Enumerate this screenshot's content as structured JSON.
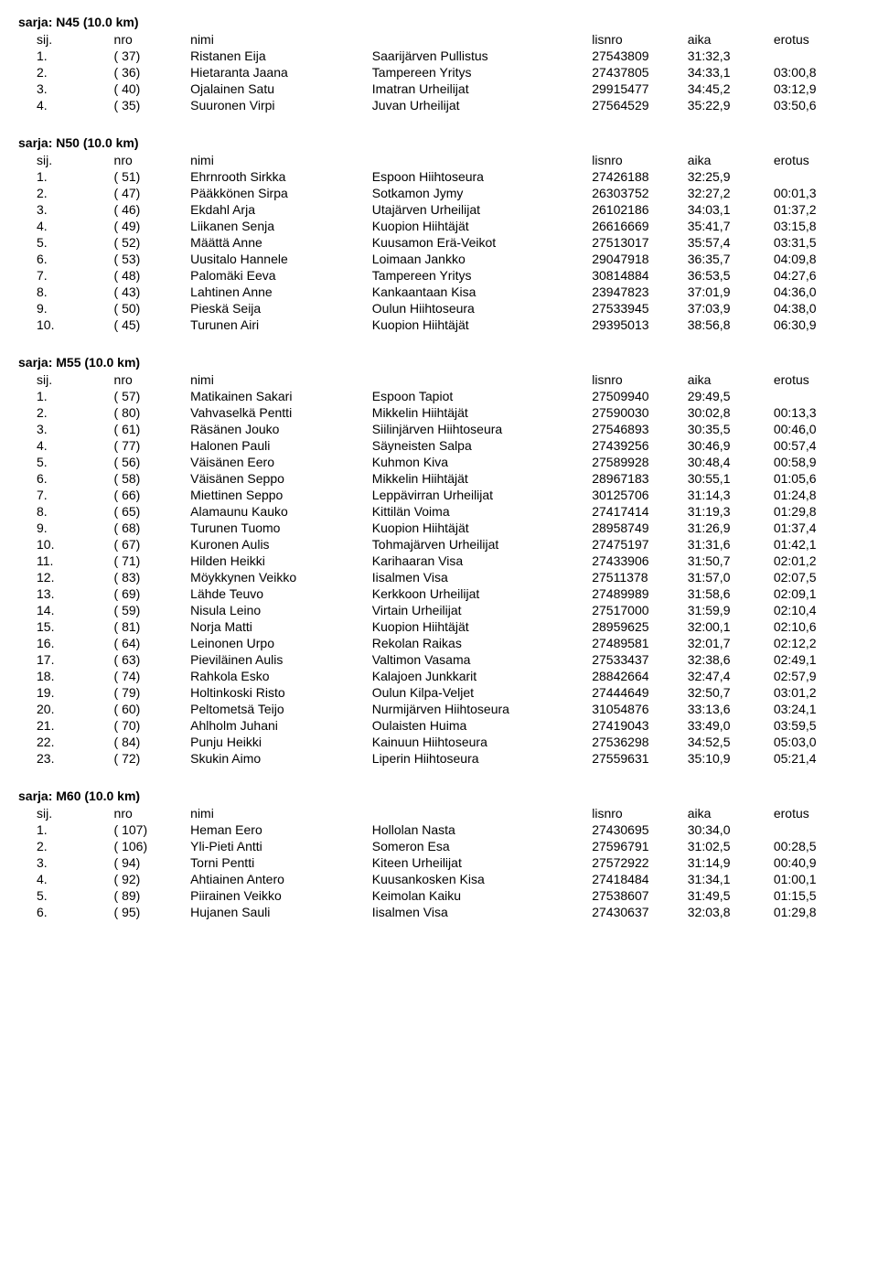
{
  "columns": {
    "sij": "sij.",
    "nro": "nro",
    "nimi": "nimi",
    "lisnro": "lisnro",
    "aika": "aika",
    "erotus": "erotus"
  },
  "series": [
    {
      "title": "sarja: N45 (10.0 km)",
      "rows": [
        {
          "sij": "1.",
          "nro": "( 37)",
          "nimi": "Ristanen Eija",
          "club": "Saarijärven Pullistus",
          "lisnro": "27543809",
          "aika": "31:32,3",
          "erotus": ""
        },
        {
          "sij": "2.",
          "nro": "( 36)",
          "nimi": "Hietaranta Jaana",
          "club": "Tampereen Yritys",
          "lisnro": "27437805",
          "aika": "34:33,1",
          "erotus": "03:00,8"
        },
        {
          "sij": "3.",
          "nro": "( 40)",
          "nimi": "Ojalainen Satu",
          "club": "Imatran Urheilijat",
          "lisnro": "29915477",
          "aika": "34:45,2",
          "erotus": "03:12,9"
        },
        {
          "sij": "4.",
          "nro": "( 35)",
          "nimi": "Suuronen Virpi",
          "club": "Juvan Urheilijat",
          "lisnro": "27564529",
          "aika": "35:22,9",
          "erotus": "03:50,6"
        }
      ]
    },
    {
      "title": "sarja: N50 (10.0 km)",
      "rows": [
        {
          "sij": "1.",
          "nro": "( 51)",
          "nimi": "Ehrnrooth Sirkka",
          "club": "Espoon Hiihtoseura",
          "lisnro": "27426188",
          "aika": "32:25,9",
          "erotus": ""
        },
        {
          "sij": "2.",
          "nro": "( 47)",
          "nimi": "Pääkkönen Sirpa",
          "club": "Sotkamon Jymy",
          "lisnro": "26303752",
          "aika": "32:27,2",
          "erotus": "00:01,3"
        },
        {
          "sij": "3.",
          "nro": "( 46)",
          "nimi": "Ekdahl Arja",
          "club": "Utajärven Urheilijat",
          "lisnro": "26102186",
          "aika": "34:03,1",
          "erotus": "01:37,2"
        },
        {
          "sij": "4.",
          "nro": "( 49)",
          "nimi": "Liikanen Senja",
          "club": "Kuopion Hiihtäjät",
          "lisnro": "26616669",
          "aika": "35:41,7",
          "erotus": "03:15,8"
        },
        {
          "sij": "5.",
          "nro": "( 52)",
          "nimi": "Määttä Anne",
          "club": "Kuusamon Erä-Veikot",
          "lisnro": "27513017",
          "aika": "35:57,4",
          "erotus": "03:31,5"
        },
        {
          "sij": "6.",
          "nro": "( 53)",
          "nimi": "Uusitalo Hannele",
          "club": "Loimaan Jankko",
          "lisnro": "29047918",
          "aika": "36:35,7",
          "erotus": "04:09,8"
        },
        {
          "sij": "7.",
          "nro": "( 48)",
          "nimi": "Palomäki Eeva",
          "club": "Tampereen Yritys",
          "lisnro": "30814884",
          "aika": "36:53,5",
          "erotus": "04:27,6"
        },
        {
          "sij": "8.",
          "nro": "( 43)",
          "nimi": "Lahtinen Anne",
          "club": "Kankaantaan Kisa",
          "lisnro": "23947823",
          "aika": "37:01,9",
          "erotus": "04:36,0"
        },
        {
          "sij": "9.",
          "nro": "( 50)",
          "nimi": "Pieskä Seija",
          "club": "Oulun Hiihtoseura",
          "lisnro": "27533945",
          "aika": "37:03,9",
          "erotus": "04:38,0"
        },
        {
          "sij": "10.",
          "nro": "( 45)",
          "nimi": "Turunen Airi",
          "club": "Kuopion Hiihtäjät",
          "lisnro": "29395013",
          "aika": "38:56,8",
          "erotus": "06:30,9"
        }
      ]
    },
    {
      "title": "sarja: M55 (10.0 km)",
      "rows": [
        {
          "sij": "1.",
          "nro": "( 57)",
          "nimi": "Matikainen Sakari",
          "club": "Espoon Tapiot",
          "lisnro": "27509940",
          "aika": "29:49,5",
          "erotus": ""
        },
        {
          "sij": "2.",
          "nro": "( 80)",
          "nimi": "Vahvaselkä Pentti",
          "club": "Mikkelin Hiihtäjät",
          "lisnro": "27590030",
          "aika": "30:02,8",
          "erotus": "00:13,3"
        },
        {
          "sij": "3.",
          "nro": "( 61)",
          "nimi": "Räsänen Jouko",
          "club": "Siilinjärven Hiihtoseura",
          "lisnro": "27546893",
          "aika": "30:35,5",
          "erotus": "00:46,0"
        },
        {
          "sij": "4.",
          "nro": "( 77)",
          "nimi": "Halonen Pauli",
          "club": "Säyneisten Salpa",
          "lisnro": "27439256",
          "aika": "30:46,9",
          "erotus": "00:57,4"
        },
        {
          "sij": "5.",
          "nro": "( 56)",
          "nimi": "Väisänen Eero",
          "club": "Kuhmon Kiva",
          "lisnro": "27589928",
          "aika": "30:48,4",
          "erotus": "00:58,9"
        },
        {
          "sij": "6.",
          "nro": "( 58)",
          "nimi": "Väisänen Seppo",
          "club": "Mikkelin Hiihtäjät",
          "lisnro": "28967183",
          "aika": "30:55,1",
          "erotus": "01:05,6"
        },
        {
          "sij": "7.",
          "nro": "( 66)",
          "nimi": "Miettinen Seppo",
          "club": "Leppävirran Urheilijat",
          "lisnro": "30125706",
          "aika": "31:14,3",
          "erotus": "01:24,8"
        },
        {
          "sij": "8.",
          "nro": "( 65)",
          "nimi": "Alamaunu Kauko",
          "club": "Kittilän Voima",
          "lisnro": "27417414",
          "aika": "31:19,3",
          "erotus": "01:29,8"
        },
        {
          "sij": "9.",
          "nro": "( 68)",
          "nimi": "Turunen Tuomo",
          "club": "Kuopion Hiihtäjät",
          "lisnro": "28958749",
          "aika": "31:26,9",
          "erotus": "01:37,4"
        },
        {
          "sij": "10.",
          "nro": "( 67)",
          "nimi": "Kuronen Aulis",
          "club": "Tohmajärven Urheilijat",
          "lisnro": "27475197",
          "aika": "31:31,6",
          "erotus": "01:42,1"
        },
        {
          "sij": "11.",
          "nro": "( 71)",
          "nimi": "Hilden Heikki",
          "club": "Karihaaran Visa",
          "lisnro": "27433906",
          "aika": "31:50,7",
          "erotus": "02:01,2"
        },
        {
          "sij": "12.",
          "nro": "( 83)",
          "nimi": "Möykkynen Veikko",
          "club": "Iisalmen Visa",
          "lisnro": "27511378",
          "aika": "31:57,0",
          "erotus": "02:07,5"
        },
        {
          "sij": "13.",
          "nro": "( 69)",
          "nimi": "Lähde Teuvo",
          "club": "Kerkkoon Urheilijat",
          "lisnro": "27489989",
          "aika": "31:58,6",
          "erotus": "02:09,1"
        },
        {
          "sij": "14.",
          "nro": "( 59)",
          "nimi": "Nisula Leino",
          "club": "Virtain Urheilijat",
          "lisnro": "27517000",
          "aika": "31:59,9",
          "erotus": "02:10,4"
        },
        {
          "sij": "15.",
          "nro": "( 81)",
          "nimi": "Norja Matti",
          "club": "Kuopion Hiihtäjät",
          "lisnro": "28959625",
          "aika": "32:00,1",
          "erotus": "02:10,6"
        },
        {
          "sij": "16.",
          "nro": "( 64)",
          "nimi": "Leinonen Urpo",
          "club": "Rekolan Raikas",
          "lisnro": "27489581",
          "aika": "32:01,7",
          "erotus": "02:12,2"
        },
        {
          "sij": "17.",
          "nro": "( 63)",
          "nimi": "Pieviläinen Aulis",
          "club": "Valtimon Vasama",
          "lisnro": "27533437",
          "aika": "32:38,6",
          "erotus": "02:49,1"
        },
        {
          "sij": "18.",
          "nro": "( 74)",
          "nimi": "Rahkola Esko",
          "club": "Kalajoen Junkkarit",
          "lisnro": "28842664",
          "aika": "32:47,4",
          "erotus": "02:57,9"
        },
        {
          "sij": "19.",
          "nro": "( 79)",
          "nimi": "Holtinkoski Risto",
          "club": "Oulun Kilpa-Veljet",
          "lisnro": "27444649",
          "aika": "32:50,7",
          "erotus": "03:01,2"
        },
        {
          "sij": "20.",
          "nro": "( 60)",
          "nimi": "Peltometsä Teijo",
          "club": "Nurmijärven Hiihtoseura",
          "lisnro": "31054876",
          "aika": "33:13,6",
          "erotus": "03:24,1"
        },
        {
          "sij": "21.",
          "nro": "( 70)",
          "nimi": "Ahlholm Juhani",
          "club": "Oulaisten Huima",
          "lisnro": "27419043",
          "aika": "33:49,0",
          "erotus": "03:59,5"
        },
        {
          "sij": "22.",
          "nro": "( 84)",
          "nimi": "Punju Heikki",
          "club": "Kainuun Hiihtoseura",
          "lisnro": "27536298",
          "aika": "34:52,5",
          "erotus": "05:03,0"
        },
        {
          "sij": "23.",
          "nro": "( 72)",
          "nimi": "Skukin Aimo",
          "club": "Liperin Hiihtoseura",
          "lisnro": "27559631",
          "aika": "35:10,9",
          "erotus": "05:21,4"
        }
      ]
    },
    {
      "title": "sarja: M60 (10.0 km)",
      "rows": [
        {
          "sij": "1.",
          "nro": "( 107)",
          "nimi": "Heman Eero",
          "club": "Hollolan Nasta",
          "lisnro": "27430695",
          "aika": "30:34,0",
          "erotus": ""
        },
        {
          "sij": "2.",
          "nro": "( 106)",
          "nimi": "Yli-Pieti Antti",
          "club": "Someron Esa",
          "lisnro": "27596791",
          "aika": "31:02,5",
          "erotus": "00:28,5"
        },
        {
          "sij": "3.",
          "nro": "( 94)",
          "nimi": "Torni Pentti",
          "club": "Kiteen Urheilijat",
          "lisnro": "27572922",
          "aika": "31:14,9",
          "erotus": "00:40,9"
        },
        {
          "sij": "4.",
          "nro": "( 92)",
          "nimi": "Ahtiainen Antero",
          "club": "Kuusankosken Kisa",
          "lisnro": "27418484",
          "aika": "31:34,1",
          "erotus": "01:00,1"
        },
        {
          "sij": "5.",
          "nro": "( 89)",
          "nimi": "Piirainen Veikko",
          "club": "Keimolan Kaiku",
          "lisnro": "27538607",
          "aika": "31:49,5",
          "erotus": "01:15,5"
        },
        {
          "sij": "6.",
          "nro": "( 95)",
          "nimi": "Hujanen Sauli",
          "club": "Iisalmen Visa",
          "lisnro": "27430637",
          "aika": "32:03,8",
          "erotus": "01:29,8"
        }
      ]
    }
  ]
}
